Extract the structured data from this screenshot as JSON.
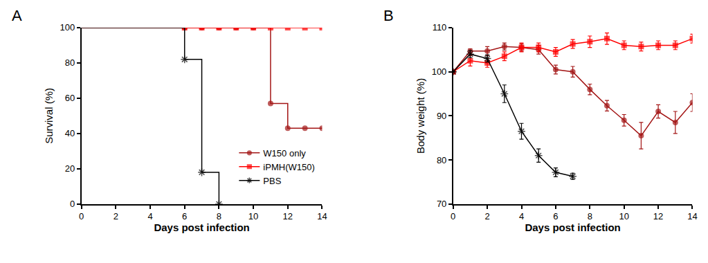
{
  "chart_data": [
    {
      "type": "line",
      "title": "A",
      "x_label": "Days post infection",
      "y_label": "Survival (%)",
      "xlim": [
        0,
        14
      ],
      "xticks": [
        0,
        2,
        4,
        6,
        8,
        10,
        12,
        14
      ],
      "ylim": [
        0,
        100
      ],
      "yticks": [
        0,
        20,
        40,
        60,
        80,
        100
      ],
      "grid": false,
      "legend": "bottom right",
      "line_style": "step",
      "series": [
        {
          "name": "W150 only",
          "color": "#a31515",
          "marker": "circle",
          "x": [
            0,
            6,
            7,
            8,
            9,
            10,
            11,
            12,
            13,
            14
          ],
          "values": [
            100,
            100,
            100,
            100,
            100,
            100,
            57,
            43,
            43,
            43
          ]
        },
        {
          "name": "iPMH(W150)",
          "color": "#ff0000",
          "marker": "square",
          "x": [
            0,
            6,
            7,
            8,
            9,
            10,
            11,
            12,
            13,
            14
          ],
          "values": [
            100,
            100,
            100,
            100,
            100,
            100,
            100,
            100,
            100,
            100
          ]
        },
        {
          "name": "PBS",
          "color": "#000000",
          "marker": "asterisk",
          "x": [
            0,
            6,
            7,
            8
          ],
          "values": [
            100,
            82,
            18,
            0
          ]
        }
      ]
    },
    {
      "type": "line",
      "title": "B",
      "x_label": "Days post infection",
      "y_label": "Body weight (%)",
      "xlim": [
        0,
        14
      ],
      "xticks": [
        0,
        2,
        4,
        6,
        8,
        10,
        12,
        14
      ],
      "ylim": [
        70,
        110
      ],
      "yticks": [
        70,
        80,
        90,
        100,
        110
      ],
      "grid": false,
      "line_style": "solid",
      "series": [
        {
          "name": "W150 only",
          "color": "#a31515",
          "marker": "circle",
          "x": [
            0,
            1,
            2,
            3,
            4,
            5,
            6,
            7,
            8,
            9,
            10,
            11,
            12,
            13,
            14
          ],
          "values": [
            100,
            104.7,
            104.7,
            105.7,
            105.5,
            105,
            100.5,
            100,
            96,
            92.3,
            89,
            85.5,
            91,
            88.5,
            93
          ],
          "errors": [
            0,
            0.5,
            1,
            0.8,
            0.8,
            1,
            1,
            1.2,
            1.2,
            1.2,
            1.3,
            3,
            1.5,
            2.5,
            2
          ]
        },
        {
          "name": "iPMH(W150)",
          "color": "#ff0000",
          "marker": "square",
          "x": [
            0,
            1,
            2,
            3,
            4,
            5,
            6,
            7,
            8,
            9,
            10,
            11,
            12,
            13,
            14
          ],
          "values": [
            100,
            102.5,
            102,
            103.5,
            105.5,
            105.5,
            104.5,
            106.3,
            106.8,
            107.5,
            106,
            105.7,
            106,
            106,
            107.5
          ],
          "errors": [
            0,
            1.2,
            1,
            1,
            1,
            1,
            1,
            1,
            1.3,
            1.3,
            1,
            1,
            1,
            1,
            1
          ]
        },
        {
          "name": "PBS",
          "color": "#000000",
          "marker": "asterisk",
          "x": [
            0,
            1,
            2,
            3,
            4,
            5,
            6,
            7
          ],
          "values": [
            100,
            104,
            103,
            95,
            86.5,
            81,
            77.2,
            76.3
          ],
          "errors": [
            0,
            0.8,
            0.8,
            2,
            1.8,
            1.5,
            1,
            0.7
          ]
        }
      ]
    }
  ]
}
